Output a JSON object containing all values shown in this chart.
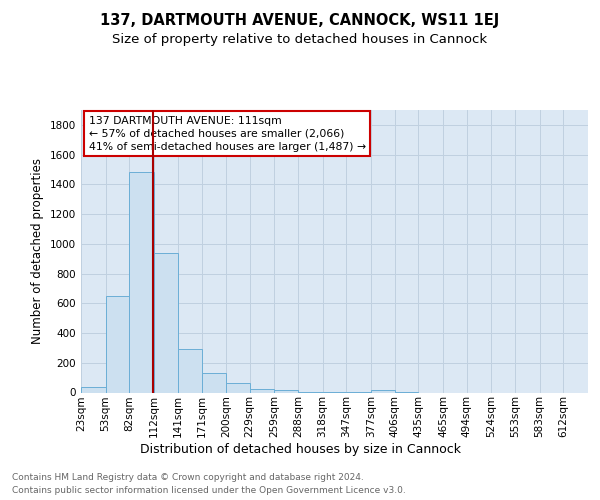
{
  "title1": "137, DARTMOUTH AVENUE, CANNOCK, WS11 1EJ",
  "title2": "Size of property relative to detached houses in Cannock",
  "xlabel": "Distribution of detached houses by size in Cannock",
  "ylabel": "Number of detached properties",
  "bin_labels": [
    "23sqm",
    "53sqm",
    "82sqm",
    "112sqm",
    "141sqm",
    "171sqm",
    "200sqm",
    "229sqm",
    "259sqm",
    "288sqm",
    "318sqm",
    "347sqm",
    "377sqm",
    "406sqm",
    "435sqm",
    "465sqm",
    "494sqm",
    "524sqm",
    "553sqm",
    "583sqm",
    "612sqm"
  ],
  "bin_edges": [
    23,
    53,
    82,
    112,
    141,
    171,
    200,
    229,
    259,
    288,
    318,
    347,
    377,
    406,
    435,
    465,
    494,
    524,
    553,
    583,
    612
  ],
  "bar_heights": [
    40,
    650,
    1480,
    935,
    295,
    130,
    65,
    25,
    20,
    5,
    5,
    5,
    20,
    5,
    0,
    0,
    0,
    0,
    0,
    0
  ],
  "bar_color": "#cce0f0",
  "bar_edge_color": "#6baed6",
  "grid_color": "#c0d0e0",
  "bg_color": "#dce8f4",
  "red_line_x": 111,
  "annotation_text": "137 DARTMOUTH AVENUE: 111sqm\n← 57% of detached houses are smaller (2,066)\n41% of semi-detached houses are larger (1,487) →",
  "annotation_box_color": "white",
  "annotation_box_edge_color": "#cc0000",
  "ylim": [
    0,
    1900
  ],
  "yticks": [
    0,
    200,
    400,
    600,
    800,
    1000,
    1200,
    1400,
    1600,
    1800
  ],
  "footer1": "Contains HM Land Registry data © Crown copyright and database right 2024.",
  "footer2": "Contains public sector information licensed under the Open Government Licence v3.0.",
  "title1_fontsize": 10.5,
  "title2_fontsize": 9.5,
  "xlabel_fontsize": 9,
  "ylabel_fontsize": 8.5,
  "tick_fontsize": 7.5,
  "annotation_fontsize": 7.8,
  "footer_fontsize": 6.5
}
